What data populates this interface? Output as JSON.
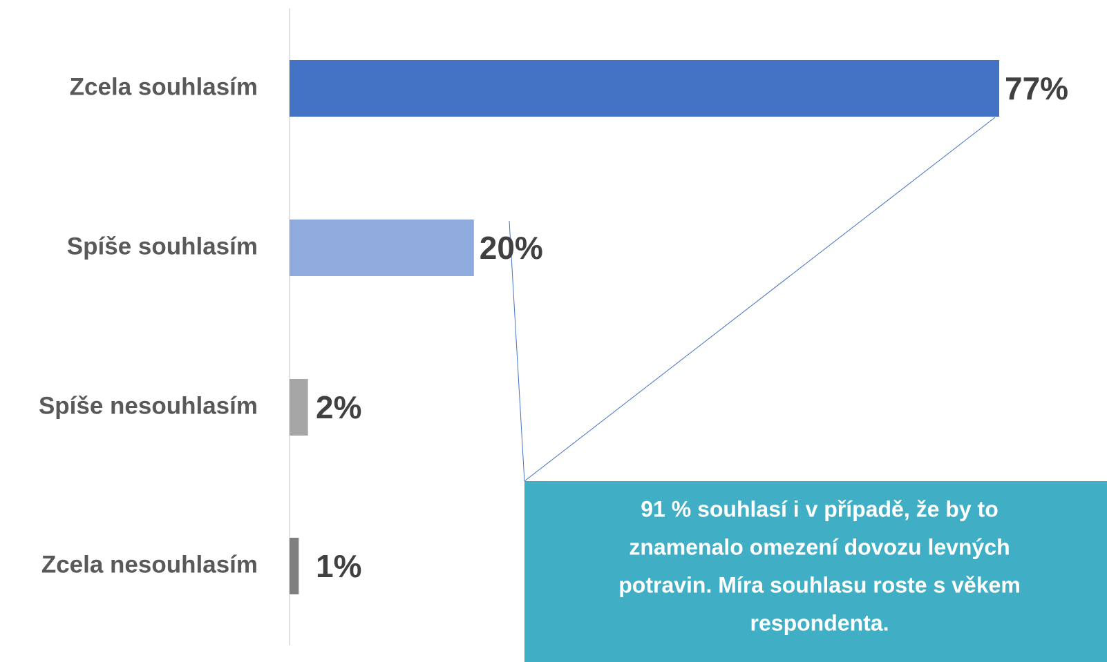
{
  "chart_data": {
    "type": "bar",
    "orientation": "horizontal",
    "categories": [
      "Zcela souhlasím",
      "Spíše souhlasím",
      "Spíše nesouhlasím",
      "Zcela nesouhlasím"
    ],
    "values": [
      77,
      20,
      2,
      1
    ],
    "value_labels": [
      "77%",
      "20%",
      "2%",
      "1%"
    ],
    "colors": [
      "#4472c4",
      "#8faadc",
      "#a6a6a6",
      "#7f7f7f"
    ],
    "xlim": [
      0,
      77
    ],
    "annotation": [
      "91 % souhlasí i v případě, že by to",
      "znamenalo omezení dovozu levných",
      "potravin. Míra souhlasu roste s věkem",
      "respondenta."
    ]
  }
}
